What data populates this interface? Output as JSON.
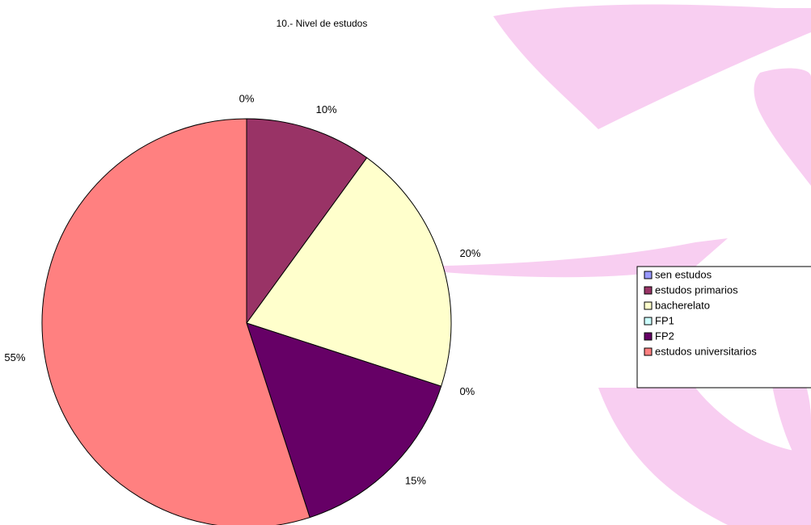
{
  "chart_data": {
    "type": "pie",
    "title": "10.- Nivel de estudos",
    "categories": [
      "sen estudos",
      "estudos primarios",
      "bacherelato",
      "FP1",
      "FP2",
      "estudos universitarios"
    ],
    "values": [
      0,
      10,
      20,
      0,
      15,
      55
    ],
    "value_labels": [
      "0%",
      "10%",
      "20%",
      "0%",
      "15%",
      "55%"
    ],
    "colors": [
      "#9999ff",
      "#993366",
      "#ffffcc",
      "#ccffff",
      "#660066",
      "#ff8080"
    ],
    "legend": "right"
  }
}
